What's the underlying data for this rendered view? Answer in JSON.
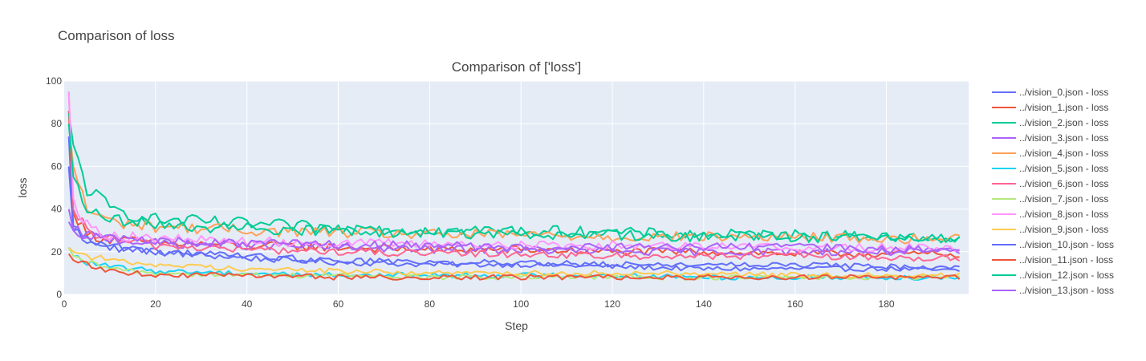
{
  "page": {
    "title": "Comparison of loss"
  },
  "chart_data": {
    "type": "line",
    "title": "Comparison of ['loss']",
    "xlabel": "Step",
    "ylabel": "loss",
    "xlim": [
      0,
      198
    ],
    "ylim": [
      0,
      100
    ],
    "x_ticks": [
      0,
      20,
      40,
      60,
      80,
      100,
      120,
      140,
      160,
      180
    ],
    "y_ticks": [
      0,
      20,
      40,
      60,
      80,
      100
    ],
    "grid": true,
    "legend_position": "right",
    "plot_background": "#e5ecf6",
    "grid_color": "#ffffff",
    "series": [
      {
        "name": "../vision_0.json - loss",
        "color": "#636efa",
        "x": [
          1,
          2,
          5,
          10,
          20,
          40,
          60,
          80,
          100,
          120,
          140,
          160,
          180,
          196
        ],
        "y": [
          74,
          32,
          26,
          23,
          20,
          17,
          15,
          14,
          14,
          13,
          12,
          12,
          12,
          11
        ]
      },
      {
        "name": "../vision_1.json - loss",
        "color": "#ef553b",
        "x": [
          1,
          2,
          5,
          10,
          20,
          40,
          60,
          80,
          100,
          120,
          140,
          160,
          180,
          196
        ],
        "y": [
          86,
          38,
          28,
          26,
          24,
          23,
          22,
          21,
          21,
          20,
          20,
          19,
          19,
          19
        ]
      },
      {
        "name": "../vision_2.json - loss",
        "color": "#00cc96",
        "x": [
          1,
          2,
          5,
          10,
          20,
          40,
          60,
          80,
          100,
          120,
          140,
          160,
          180,
          196
        ],
        "y": [
          85,
          70,
          50,
          40,
          35,
          33,
          31,
          30,
          30,
          29,
          28,
          28,
          27,
          26
        ]
      },
      {
        "name": "../vision_3.json - loss",
        "color": "#ab63fa",
        "x": [
          1,
          2,
          5,
          10,
          20,
          40,
          60,
          80,
          100,
          120,
          140,
          160,
          180,
          196
        ],
        "y": [
          34,
          30,
          28,
          26,
          24,
          23,
          22,
          21,
          21,
          20,
          20,
          20,
          20,
          20
        ]
      },
      {
        "name": "../vision_4.json - loss",
        "color": "#ffa15a",
        "x": [
          1,
          2,
          5,
          10,
          20,
          40,
          60,
          80,
          100,
          120,
          140,
          160,
          180,
          196
        ],
        "y": [
          80,
          60,
          40,
          34,
          32,
          30,
          29,
          28,
          28,
          27,
          27,
          27,
          26,
          26
        ]
      },
      {
        "name": "../vision_5.json - loss",
        "color": "#19d3f3",
        "x": [
          1,
          2,
          5,
          10,
          20,
          40,
          60,
          80,
          100,
          120,
          140,
          160,
          180,
          196
        ],
        "y": [
          22,
          18,
          15,
          13,
          11,
          10,
          9,
          9,
          9,
          9,
          8,
          8,
          8,
          8
        ]
      },
      {
        "name": "../vision_6.json - loss",
        "color": "#ff6692",
        "x": [
          1,
          2,
          5,
          10,
          20,
          40,
          60,
          80,
          100,
          120,
          140,
          160,
          180,
          196
        ],
        "y": [
          95,
          40,
          30,
          26,
          23,
          21,
          20,
          19,
          19,
          18,
          18,
          18,
          17,
          17
        ]
      },
      {
        "name": "../vision_7.json - loss",
        "color": "#b6e880",
        "x": [
          1,
          2,
          5,
          10,
          20,
          40,
          60,
          80,
          100,
          120,
          140,
          160,
          180,
          196
        ],
        "y": [
          22,
          18,
          15,
          12,
          10,
          9,
          9,
          8,
          8,
          8,
          8,
          8,
          8,
          8
        ]
      },
      {
        "name": "../vision_8.json - loss",
        "color": "#ff97ff",
        "x": [
          1,
          2,
          5,
          10,
          20,
          40,
          60,
          80,
          100,
          120,
          140,
          160,
          180,
          196
        ],
        "y": [
          95,
          45,
          32,
          28,
          26,
          25,
          24,
          24,
          23,
          23,
          23,
          22,
          22,
          22
        ]
      },
      {
        "name": "../vision_9.json - loss",
        "color": "#fecb52",
        "x": [
          1,
          2,
          5,
          10,
          20,
          40,
          60,
          80,
          100,
          120,
          140,
          160,
          180,
          196
        ],
        "y": [
          22,
          20,
          18,
          16,
          14,
          12,
          11,
          10,
          10,
          10,
          10,
          9,
          9,
          9
        ]
      },
      {
        "name": "../vision_10.json - loss",
        "color": "#636efa",
        "x": [
          1,
          2,
          5,
          10,
          20,
          40,
          60,
          80,
          100,
          120,
          140,
          160,
          180,
          196
        ],
        "y": [
          60,
          30,
          25,
          22,
          20,
          18,
          16,
          15,
          15,
          14,
          14,
          14,
          13,
          13
        ]
      },
      {
        "name": "../vision_11.json - loss",
        "color": "#ef553b",
        "x": [
          1,
          2,
          5,
          10,
          20,
          40,
          60,
          80,
          100,
          120,
          140,
          160,
          180,
          196
        ],
        "y": [
          19,
          16,
          14,
          11,
          9,
          9,
          8,
          8,
          8,
          8,
          8,
          8,
          8,
          8
        ]
      },
      {
        "name": "../vision_12.json - loss",
        "color": "#00cc96",
        "x": [
          1,
          2,
          5,
          10,
          20,
          40,
          60,
          80,
          100,
          120,
          140,
          160,
          180,
          196
        ],
        "y": [
          80,
          55,
          38,
          35,
          33,
          31,
          30,
          29,
          28,
          28,
          27,
          27,
          26,
          26
        ]
      },
      {
        "name": "../vision_13.json - loss",
        "color": "#ab63fa",
        "x": [
          1,
          2,
          5,
          10,
          20,
          40,
          60,
          80,
          100,
          120,
          140,
          160,
          180,
          196
        ],
        "y": [
          40,
          30,
          28,
          26,
          25,
          24,
          23,
          23,
          22,
          22,
          22,
          22,
          21,
          21
        ]
      }
    ]
  }
}
